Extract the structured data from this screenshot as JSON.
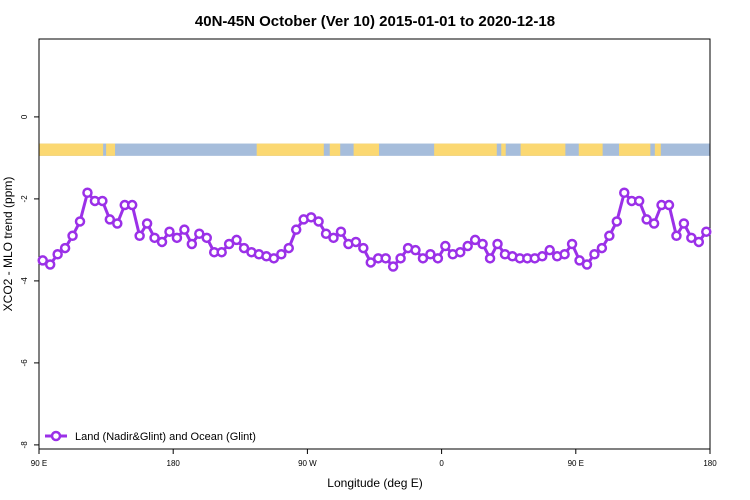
{
  "chart_data": {
    "type": "line",
    "title": "40N-45N October (Ver 10)   2015-01-01 to 2020-12-18",
    "xlabel": "Longitude (deg E)",
    "ylabel": "XCO2 - MLO trend (ppm)",
    "xlim": [
      90,
      540
    ],
    "ylim": [
      -8.1,
      1.9
    ],
    "x_ticks": [
      {
        "value": 90,
        "label": "90 E"
      },
      {
        "value": 180,
        "label": "180"
      },
      {
        "value": 270,
        "label": "90 W"
      },
      {
        "value": 360,
        "label": "0"
      },
      {
        "value": 450,
        "label": "90 E"
      },
      {
        "value": 540,
        "label": "180"
      }
    ],
    "y_ticks": [
      {
        "value": 0,
        "label": "0"
      },
      {
        "value": -2,
        "label": "-2"
      },
      {
        "value": -4,
        "label": "-4"
      },
      {
        "value": -6,
        "label": "-6"
      },
      {
        "value": -8,
        "label": "-8"
      }
    ],
    "land_ocean_band": {
      "y_range": [
        -0.95,
        -0.65
      ],
      "ocean_color": "#a6bddb",
      "land_color": "#fbd872",
      "land_segments": [
        [
          90,
          133
        ],
        [
          135,
          141
        ],
        [
          236,
          281
        ],
        [
          285,
          292
        ],
        [
          301,
          318
        ],
        [
          355,
          397
        ],
        [
          400,
          403
        ],
        [
          413,
          443
        ],
        [
          452,
          468
        ],
        [
          479,
          500
        ],
        [
          503,
          507
        ]
      ]
    },
    "series": [
      {
        "name": "Land (Nadir&Glint) and Ocean (Glint)",
        "color": "#9b30e8",
        "x": [
          92.5,
          97.5,
          102.5,
          107.5,
          112.5,
          117.5,
          122.5,
          127.5,
          132.5,
          137.5,
          142.5,
          147.5,
          152.5,
          157.5,
          162.5,
          167.5,
          172.5,
          177.5,
          182.5,
          187.5,
          192.5,
          197.5,
          202.5,
          207.5,
          212.5,
          217.5,
          222.5,
          227.5,
          232.5,
          237.5,
          242.5,
          247.5,
          252.5,
          257.5,
          262.5,
          267.5,
          272.5,
          277.5,
          282.5,
          287.5,
          292.5,
          297.5,
          302.5,
          307.5,
          312.5,
          317.5,
          322.5,
          327.5,
          332.5,
          337.5,
          342.5,
          347.5,
          352.5,
          357.5,
          362.5,
          367.5,
          372.5,
          377.5,
          382.5,
          387.5,
          392.5,
          397.5,
          402.5,
          407.5,
          412.5,
          417.5,
          422.5,
          427.5,
          432.5,
          437.5,
          442.5,
          447.5,
          452.5,
          457.5,
          462.5,
          467.5,
          472.5,
          477.5,
          482.5,
          487.5,
          492.5,
          497.5,
          502.5,
          507.5,
          512.5,
          517.5,
          522.5,
          527.5,
          532.5,
          537.5
        ],
        "y": [
          -3.5,
          -3.6,
          -3.35,
          -3.2,
          -2.9,
          -2.55,
          -1.85,
          -2.05,
          -2.05,
          -2.5,
          -2.6,
          -2.15,
          -2.15,
          -2.9,
          -2.6,
          -2.95,
          -3.05,
          -2.8,
          -2.95,
          -2.75,
          -3.1,
          -2.85,
          -2.95,
          -3.3,
          -3.3,
          -3.1,
          -3.0,
          -3.2,
          -3.3,
          -3.35,
          -3.4,
          -3.45,
          -3.35,
          -3.2,
          -2.75,
          -2.5,
          -2.45,
          -2.55,
          -2.85,
          -2.95,
          -2.8,
          -3.1,
          -3.05,
          -3.2,
          -3.55,
          -3.45,
          -3.45,
          -3.65,
          -3.45,
          -3.2,
          -3.25,
          -3.45,
          -3.35,
          -3.45,
          -3.15,
          -3.35,
          -3.3,
          -3.15,
          -3.0,
          -3.1,
          -3.45,
          -3.1,
          -3.35,
          -3.4,
          -3.45,
          -3.45,
          -3.45,
          -3.4,
          -3.25,
          -3.4,
          -3.35,
          -3.1,
          -3.5,
          -3.6,
          -3.35,
          -3.2,
          -2.9,
          -2.55,
          -1.85,
          -2.05,
          -2.05,
          -2.5,
          -2.6,
          -2.15,
          -2.15,
          -2.9,
          -2.6,
          -2.95,
          -3.05,
          -2.8
        ]
      }
    ],
    "legend": {
      "placement": "bottom-left",
      "label": "Land (Nadir&Glint) and Ocean (Glint)"
    }
  }
}
